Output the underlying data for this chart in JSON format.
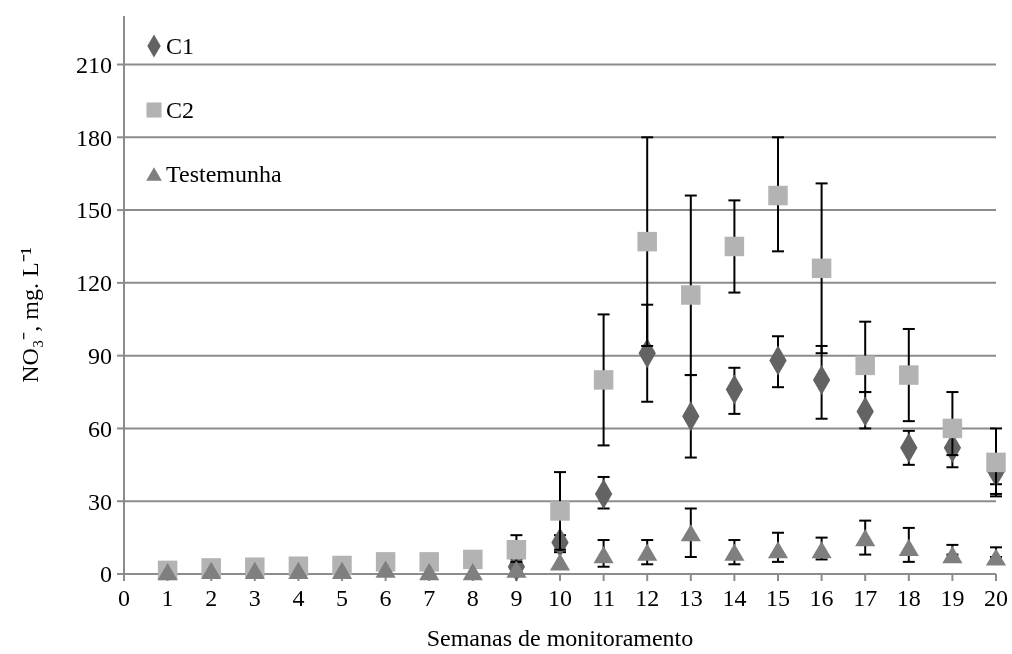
{
  "chart_data": {
    "type": "scatter",
    "xlabel": "Semanas de monitoramento",
    "ylabel": "NO₃⁻, mg. L⁻¹",
    "x": [
      1,
      2,
      3,
      4,
      5,
      6,
      7,
      8,
      9,
      10,
      11,
      12,
      13,
      14,
      15,
      16,
      17,
      18,
      19,
      20
    ],
    "xlim": [
      0,
      20
    ],
    "xticks": [
      0,
      1,
      2,
      3,
      4,
      5,
      6,
      7,
      8,
      9,
      10,
      11,
      12,
      13,
      14,
      15,
      16,
      17,
      18,
      19,
      20
    ],
    "ylim": [
      0,
      230
    ],
    "yticks": [
      0,
      30,
      60,
      90,
      120,
      150,
      180,
      210
    ],
    "grid": "y",
    "legend": "top left",
    "series": [
      {
        "name": "C1",
        "color": "#636363",
        "marker": "diamond",
        "values": [
          null,
          null,
          null,
          null,
          null,
          null,
          null,
          null,
          3,
          13,
          33,
          91,
          65,
          76,
          88,
          80,
          67,
          52,
          52,
          42
        ],
        "errors": [
          null,
          null,
          null,
          null,
          null,
          null,
          null,
          null,
          [
            3,
            6
          ],
          [
            9,
            16
          ],
          [
            27,
            40
          ],
          [
            71,
            111
          ],
          [
            48,
            82
          ],
          [
            66,
            85
          ],
          [
            77,
            98
          ],
          [
            64,
            94
          ],
          [
            60,
            75
          ],
          [
            45,
            59
          ],
          [
            44,
            57
          ],
          [
            32,
            37
          ]
        ]
      },
      {
        "name": "C2",
        "color": "#b3b3b3",
        "marker": "square",
        "values": [
          1.5,
          2.5,
          2.8,
          3.2,
          3.5,
          5,
          5,
          6,
          10,
          26,
          80,
          137,
          115,
          135,
          156,
          126,
          86,
          82,
          60,
          46
        ],
        "errors": [
          null,
          null,
          null,
          null,
          null,
          null,
          null,
          null,
          [
            5,
            16
          ],
          [
            10,
            42
          ],
          [
            53,
            107
          ],
          [
            94,
            180
          ],
          [
            82,
            156
          ],
          [
            116,
            154
          ],
          [
            133,
            180
          ],
          [
            91,
            161
          ],
          [
            75,
            104
          ],
          [
            63,
            101
          ],
          [
            49,
            75
          ],
          [
            33,
            60
          ]
        ]
      },
      {
        "name": "Testemunha",
        "color": "#7f7f7f",
        "marker": "triangle",
        "values": [
          1,
          1.5,
          1.5,
          1.5,
          1.5,
          2,
          1,
          1,
          2,
          5,
          8,
          9,
          17,
          9,
          10,
          10,
          15,
          11,
          8,
          7
        ],
        "errors": [
          null,
          null,
          null,
          null,
          null,
          null,
          null,
          null,
          null,
          null,
          [
            3,
            14
          ],
          [
            4,
            14
          ],
          [
            7,
            27
          ],
          [
            4,
            14
          ],
          [
            5,
            17
          ],
          [
            6,
            15
          ],
          [
            8,
            22
          ],
          [
            5,
            19
          ],
          [
            8,
            12
          ],
          [
            7,
            11
          ]
        ]
      }
    ]
  }
}
